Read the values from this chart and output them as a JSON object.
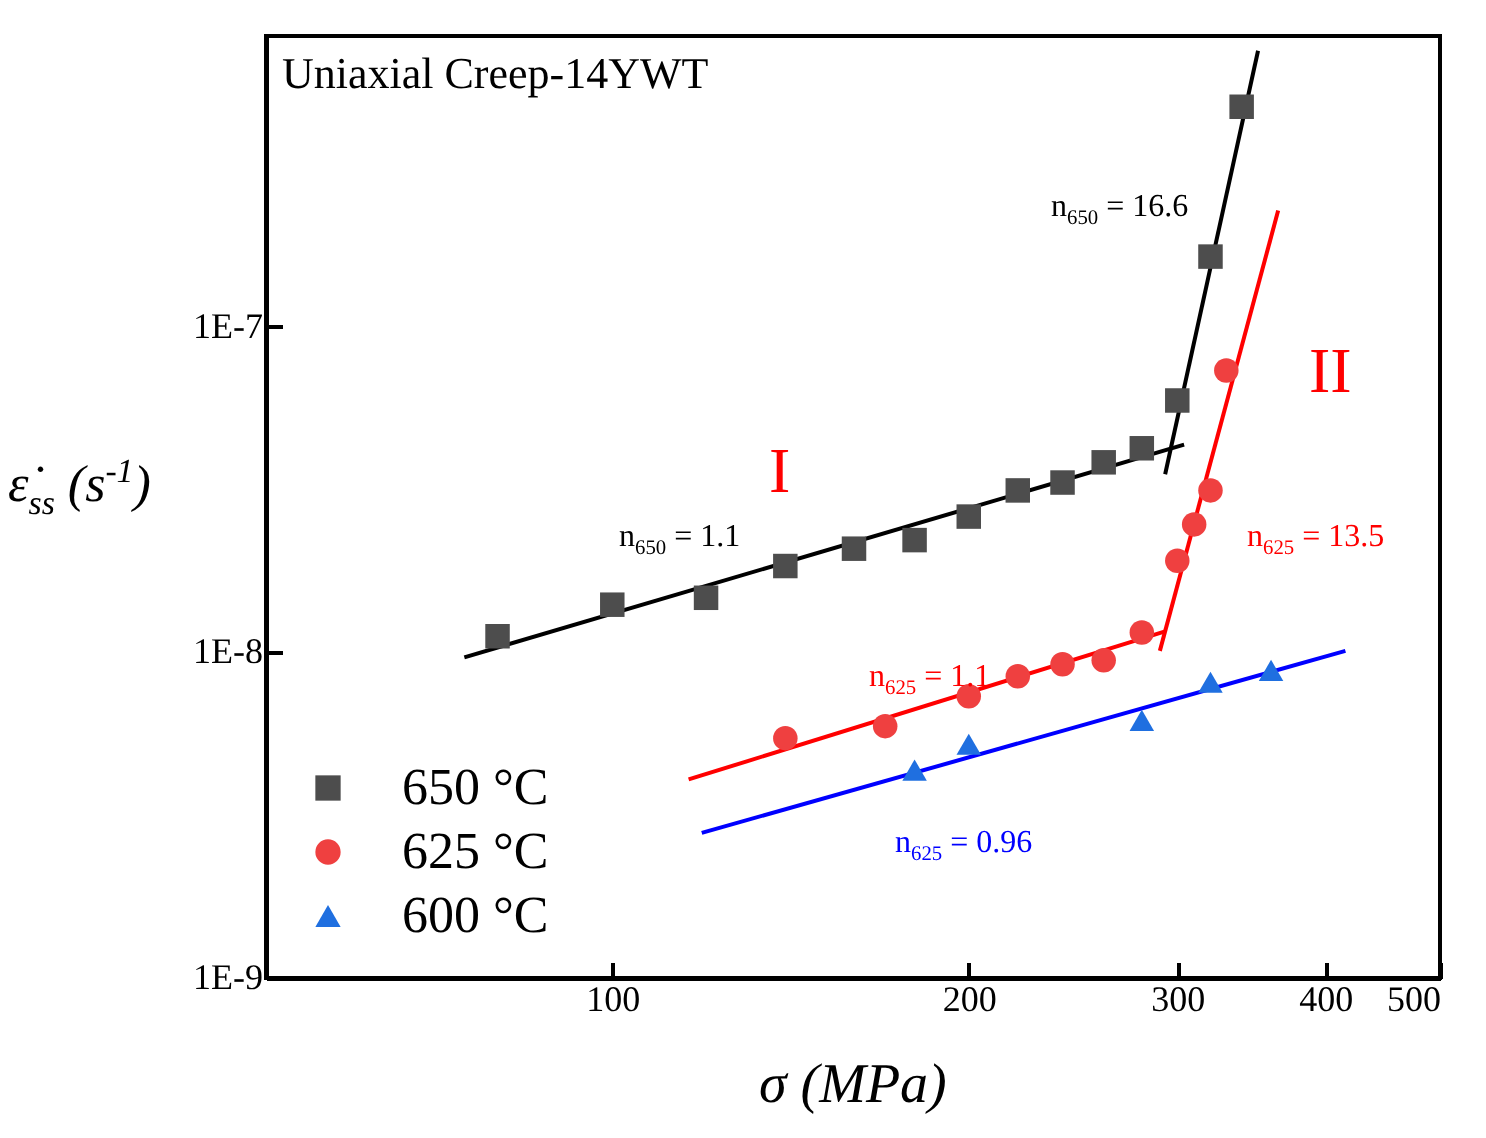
{
  "chart_data": {
    "type": "scatter",
    "title": "Uniaxial Creep-14YWT",
    "xlabel": "σ (MPa)",
    "ylabel": "ε̇$_{ss}$ (s$^{-1}$)",
    "log": "xy",
    "grid": false,
    "legend": "bottom left",
    "xlim": [
      51,
      500
    ],
    "xticks": [
      100,
      200,
      300,
      400,
      500
    ],
    "ylim": [
      1e-09,
      7.8e-07
    ],
    "yticks": [
      {
        "value": 1e-09,
        "label": "1E-9"
      },
      {
        "value": 1e-08,
        "label": "1E-8"
      },
      {
        "value": 1e-07,
        "label": "1E-7"
      }
    ],
    "series": [
      {
        "name": "650 °C",
        "color": "#4d4d4d",
        "marker": "square",
        "x": [
          80,
          100,
          120,
          140,
          160,
          180,
          200,
          220,
          240,
          260,
          280,
          300,
          320,
          340
        ],
        "values": [
          1.12e-08,
          1.4e-08,
          1.47e-08,
          1.84e-08,
          2.08e-08,
          2.21e-08,
          2.61e-08,
          3.14e-08,
          3.32e-08,
          3.83e-08,
          4.23e-08,
          5.93e-08,
          1.64e-07,
          4.73e-07
        ]
      },
      {
        "name": "625 °C",
        "color": "#ef4040",
        "marker": "circle",
        "x": [
          140,
          170,
          200,
          220,
          240,
          260,
          280,
          300,
          310,
          320,
          330
        ],
        "values": [
          5.45e-09,
          5.93e-09,
          7.33e-09,
          8.44e-09,
          9.19e-09,
          9.45e-09,
          1.15e-08,
          1.91e-08,
          2.47e-08,
          3.14e-08,
          7.33e-08
        ]
      },
      {
        "name": "600 °C",
        "color": "#1f6fe0",
        "marker": "triangle",
        "x": [
          180,
          200,
          280,
          320,
          360
        ],
        "values": [
          4.35e-09,
          5.22e-09,
          6.18e-09,
          8.09e-09,
          8.8e-09
        ]
      },
      {
        "type": "line",
        "name": "n$_{650}$ = 1.1",
        "color": "#000000",
        "x": [
          75,
          304
        ],
        "values": [
          9.65e-09,
          4.34e-08
        ]
      },
      {
        "type": "line",
        "name": "n$_{650}$ = 16.6",
        "color": "#000000",
        "x": [
          293,
          351
        ],
        "values": [
          3.52e-08,
          7.03e-07
        ]
      },
      {
        "type": "line",
        "name": "n$_{625}$ = 1.1",
        "color": "#ff0000",
        "x": [
          116,
          293
        ],
        "values": [
          4.07e-09,
          1.16e-08
        ]
      },
      {
        "type": "line",
        "name": "n$_{625}$ = 13.5",
        "color": "#ff0000",
        "x": [
          290,
          365
        ],
        "values": [
          1.01e-08,
          2.27e-07
        ]
      },
      {
        "type": "line",
        "name": "n$_{625}$ = 0.96",
        "color": "#0000ff",
        "x": [
          119,
          416
        ],
        "values": [
          2.79e-09,
          1.01e-08
        ]
      }
    ],
    "annotations": [
      "I",
      "II"
    ]
  }
}
